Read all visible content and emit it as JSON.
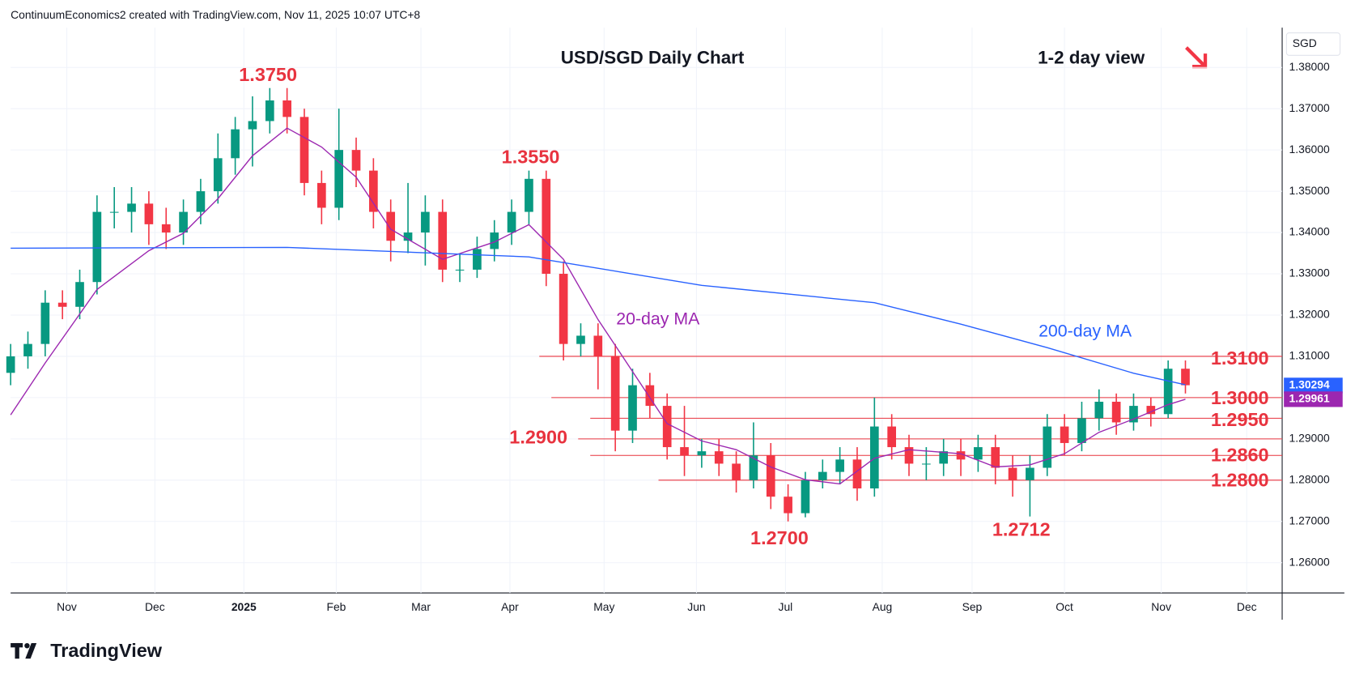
{
  "header": "ContinuumEconomics2 created with TradingView.com, Nov 11, 2025 10:07 UTC+8",
  "logo": "TradingView",
  "chart_data": {
    "type": "candlestick",
    "title": "USD/SGD Daily Chart",
    "subtitle": "1-2 day view",
    "currency": "SGD",
    "up_color": "#089981",
    "down_color": "#f23645",
    "grid": true,
    "xlim": [
      0,
      294.4
    ],
    "xticks": [
      {
        "value": 13,
        "label": "Nov"
      },
      {
        "value": 33.4,
        "label": "Dec"
      },
      {
        "value": 54,
        "label": "2025"
      },
      {
        "value": 75.4,
        "label": "Feb"
      },
      {
        "value": 95,
        "label": "Mar"
      },
      {
        "value": 115.6,
        "label": "Apr"
      },
      {
        "value": 137.4,
        "label": "May"
      },
      {
        "value": 158.8,
        "label": "Jun"
      },
      {
        "value": 179.4,
        "label": "Jul"
      },
      {
        "value": 201.8,
        "label": "Aug"
      },
      {
        "value": 222.6,
        "label": "Sep"
      },
      {
        "value": 244,
        "label": "Oct"
      },
      {
        "value": 266.4,
        "label": "Nov"
      },
      {
        "value": 286.2,
        "label": "Dec"
      }
    ],
    "ylim": [
      1.25267,
      1.38963
    ],
    "yticks": [
      {
        "value": 1.26,
        "label": "1.26000"
      },
      {
        "value": 1.27,
        "label": "1.27000"
      },
      {
        "value": 1.28,
        "label": "1.28000"
      },
      {
        "value": 1.29,
        "label": "1.29000"
      },
      {
        "value": 1.3,
        "label": "1.30000"
      },
      {
        "value": 1.31,
        "label": "1.31000"
      },
      {
        "value": 1.32,
        "label": "1.32000"
      },
      {
        "value": 1.33,
        "label": "1.33000"
      },
      {
        "value": 1.34,
        "label": "1.34000"
      },
      {
        "value": 1.35,
        "label": "1.35000"
      },
      {
        "value": 1.36,
        "label": "1.36000"
      },
      {
        "value": 1.37,
        "label": "1.37000"
      },
      {
        "value": 1.38,
        "label": "1.38000"
      }
    ],
    "x": [
      0,
      4,
      8,
      12,
      16,
      20,
      24,
      28,
      32,
      36,
      40,
      44,
      48,
      52,
      56,
      60,
      64,
      68,
      72,
      76,
      80,
      84,
      88,
      92,
      96,
      100,
      104,
      108,
      112,
      116,
      120,
      124,
      128,
      132,
      136,
      140,
      144,
      148,
      152,
      156,
      160,
      164,
      168,
      172,
      176,
      180,
      184,
      188,
      192,
      196,
      200,
      204,
      208,
      212,
      216,
      220,
      224,
      228,
      232,
      236,
      240,
      244,
      248,
      252,
      256,
      260,
      264,
      268,
      272
    ],
    "open": [
      1.306,
      1.31,
      1.313,
      1.323,
      1.322,
      1.328,
      1.345,
      1.345,
      1.347,
      1.342,
      1.34,
      1.345,
      1.35,
      1.358,
      1.365,
      1.367,
      1.372,
      1.368,
      1.352,
      1.346,
      1.36,
      1.355,
      1.345,
      1.338,
      1.34,
      1.345,
      1.331,
      1.331,
      1.336,
      1.34,
      1.345,
      1.353,
      1.33,
      1.313,
      1.315,
      1.31,
      1.292,
      1.303,
      1.298,
      1.288,
      1.286,
      1.287,
      1.284,
      1.28,
      1.286,
      1.276,
      1.272,
      1.28,
      1.282,
      1.285,
      1.278,
      1.293,
      1.288,
      1.284,
      1.284,
      1.287,
      1.285,
      1.288,
      1.283,
      1.28,
      1.283,
      1.293,
      1.289,
      1.295,
      1.299,
      1.294,
      1.298,
      1.296,
      1.307
    ],
    "high": [
      1.313,
      1.316,
      1.326,
      1.326,
      1.331,
      1.349,
      1.351,
      1.351,
      1.35,
      1.346,
      1.348,
      1.353,
      1.364,
      1.368,
      1.373,
      1.375,
      1.375,
      1.37,
      1.355,
      1.37,
      1.363,
      1.358,
      1.348,
      1.352,
      1.349,
      1.348,
      1.335,
      1.339,
      1.343,
      1.348,
      1.355,
      1.355,
      1.333,
      1.318,
      1.318,
      1.313,
      1.307,
      1.306,
      1.301,
      1.298,
      1.29,
      1.29,
      1.287,
      1.294,
      1.289,
      1.279,
      1.282,
      1.285,
      1.288,
      1.288,
      1.3,
      1.296,
      1.291,
      1.288,
      1.29,
      1.29,
      1.291,
      1.291,
      1.286,
      1.286,
      1.296,
      1.296,
      1.299,
      1.302,
      1.301,
      1.301,
      1.3,
      1.309,
      1.309
    ],
    "low": [
      1.303,
      1.307,
      1.31,
      1.319,
      1.319,
      1.325,
      1.341,
      1.34,
      1.337,
      1.336,
      1.337,
      1.342,
      1.347,
      1.354,
      1.356,
      1.364,
      1.364,
      1.349,
      1.342,
      1.343,
      1.351,
      1.341,
      1.333,
      1.335,
      1.332,
      1.328,
      1.328,
      1.329,
      1.333,
      1.337,
      1.342,
      1.327,
      1.309,
      1.31,
      1.302,
      1.287,
      1.289,
      1.295,
      1.285,
      1.281,
      1.283,
      1.281,
      1.277,
      1.278,
      1.273,
      1.27,
      1.271,
      1.278,
      1.279,
      1.275,
      1.276,
      1.285,
      1.281,
      1.28,
      1.281,
      1.281,
      1.282,
      1.279,
      1.276,
      1.2712,
      1.281,
      1.286,
      1.287,
      1.292,
      1.291,
      1.292,
      1.293,
      1.295,
      1.301
    ],
    "close": [
      1.31,
      1.313,
      1.323,
      1.322,
      1.328,
      1.345,
      1.345,
      1.347,
      1.342,
      1.34,
      1.345,
      1.35,
      1.358,
      1.365,
      1.367,
      1.372,
      1.368,
      1.352,
      1.346,
      1.36,
      1.355,
      1.345,
      1.338,
      1.34,
      1.345,
      1.331,
      1.331,
      1.336,
      1.34,
      1.345,
      1.353,
      1.33,
      1.313,
      1.315,
      1.31,
      1.292,
      1.303,
      1.298,
      1.288,
      1.286,
      1.287,
      1.284,
      1.28,
      1.286,
      1.276,
      1.272,
      1.28,
      1.282,
      1.285,
      1.278,
      1.293,
      1.288,
      1.284,
      1.284,
      1.287,
      1.285,
      1.288,
      1.283,
      1.28,
      1.283,
      1.293,
      1.289,
      1.295,
      1.299,
      1.294,
      1.298,
      1.296,
      1.307,
      1.303
    ],
    "series": [
      {
        "name": "20-day MA",
        "color": "#9c27b0",
        "x": [
          0,
          8,
          20,
          32,
          40,
          48,
          56,
          64,
          72,
          80,
          88,
          100,
          112,
          120,
          128,
          136,
          144,
          152,
          160,
          168,
          176,
          184,
          192,
          200,
          208,
          220,
          228,
          236,
          244,
          252,
          260,
          268,
          272
        ],
        "values": [
          1.2958,
          1.3084,
          1.3262,
          1.3356,
          1.3398,
          1.3482,
          1.3586,
          1.3653,
          1.3607,
          1.3534,
          1.3408,
          1.3335,
          1.3377,
          1.3419,
          1.3335,
          1.3189,
          1.3063,
          1.2937,
          1.2895,
          1.2874,
          1.2832,
          1.2801,
          1.2791,
          1.2853,
          1.2874,
          1.2864,
          1.2832,
          1.2837,
          1.2864,
          1.2916,
          1.2948,
          1.2983,
          1.2996
        ]
      },
      {
        "name": "200-day MA",
        "color": "#2962ff",
        "x": [
          0,
          64,
          120,
          160,
          200,
          220,
          240,
          260,
          272
        ],
        "values": [
          1.3362,
          1.3364,
          1.3341,
          1.3272,
          1.323,
          1.3178,
          1.3121,
          1.3059,
          1.3031
        ]
      }
    ],
    "last_price": {
      "value": 1.30294,
      "label": "1.30294"
    },
    "ma_last": {
      "value": 1.29961,
      "label": "1.29961"
    },
    "levels": [
      {
        "value": 1.31,
        "label": "1.3100"
      },
      {
        "value": 1.3,
        "label": "1.3000"
      },
      {
        "value": 1.295,
        "label": "1.2950"
      },
      {
        "value": 1.29,
        "label": "1.2900"
      },
      {
        "value": 1.286,
        "label": "1.2860"
      },
      {
        "value": 1.28,
        "label": "1.2800"
      }
    ],
    "annotations": [
      "1.3750",
      "1.3550",
      "1.2700",
      "1.2712"
    ]
  }
}
